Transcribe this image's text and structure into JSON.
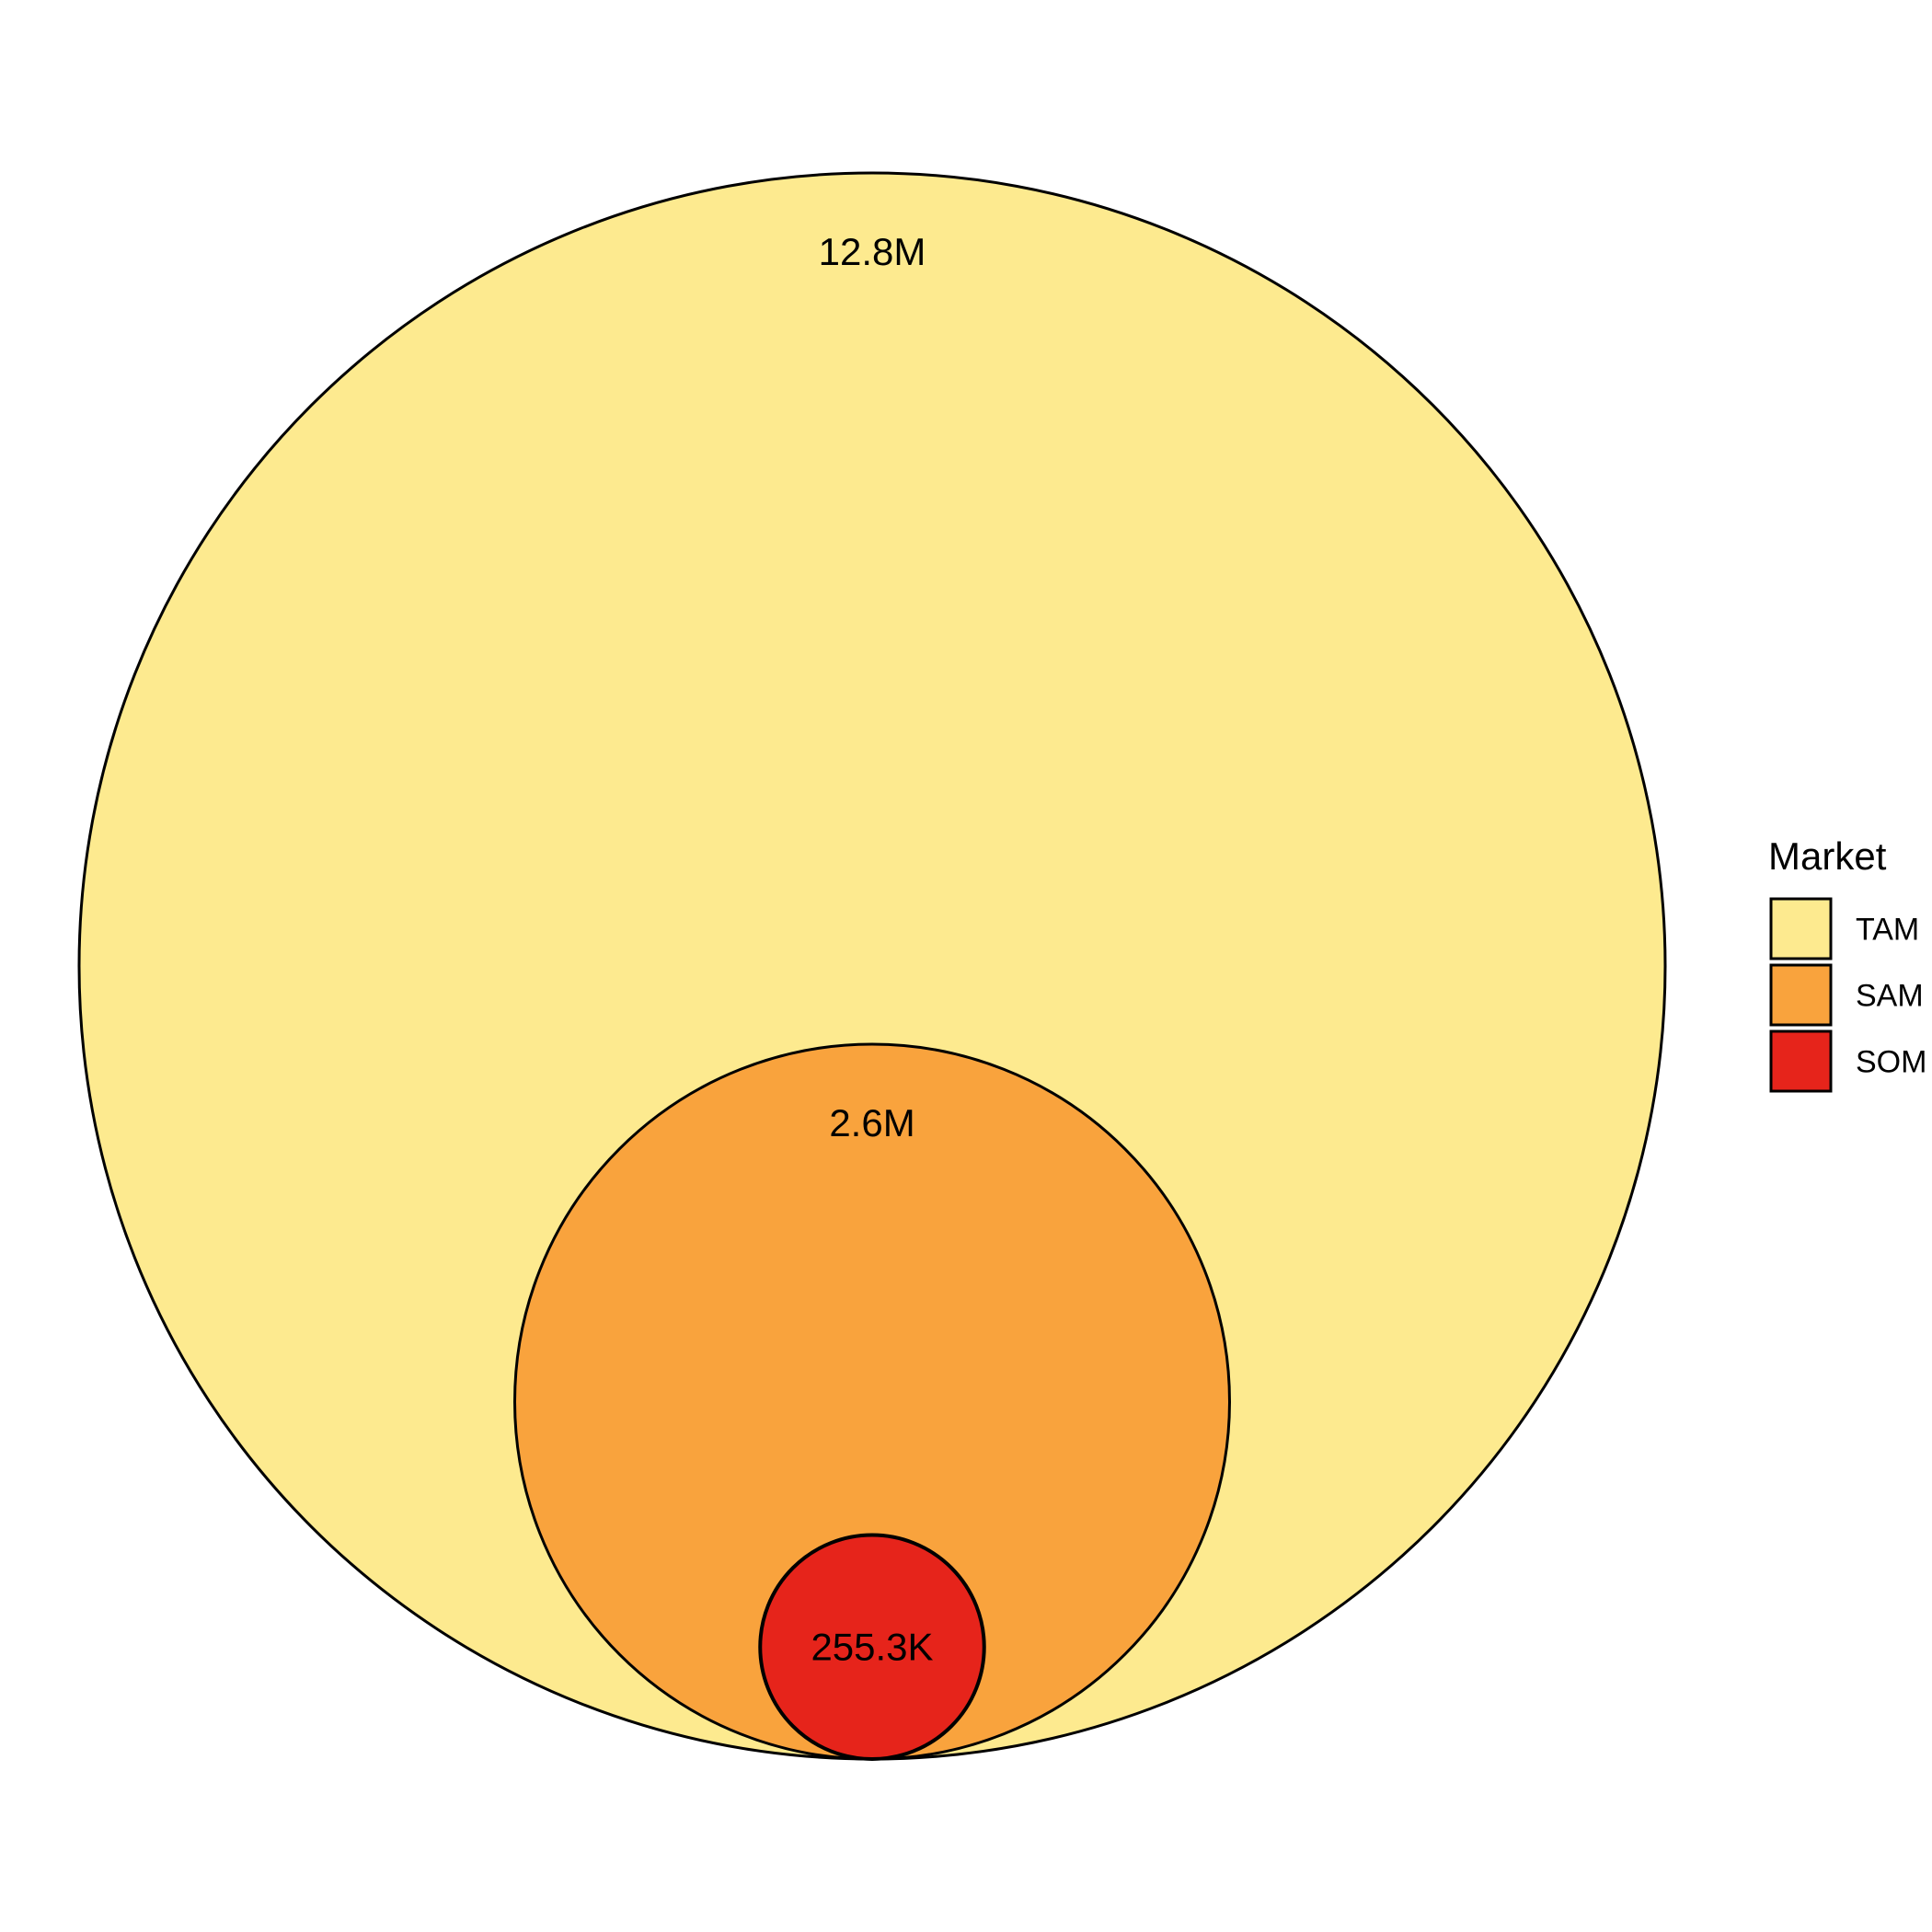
{
  "chart_data": {
    "type": "nested-circles",
    "title": "",
    "xlabel": "",
    "ylabel": "",
    "legend": {
      "title": "Market",
      "position": "right"
    },
    "series": [
      {
        "name": "TAM",
        "value": 12800000,
        "label": "12.8M",
        "color": "#FDEA8F"
      },
      {
        "name": "SAM",
        "value": 2600000,
        "label": "2.6M",
        "color": "#F9A33D"
      },
      {
        "name": "SOM",
        "value": 255300,
        "label": "255.3K",
        "color": "#E6241B"
      }
    ],
    "outline_color": "#000000"
  }
}
